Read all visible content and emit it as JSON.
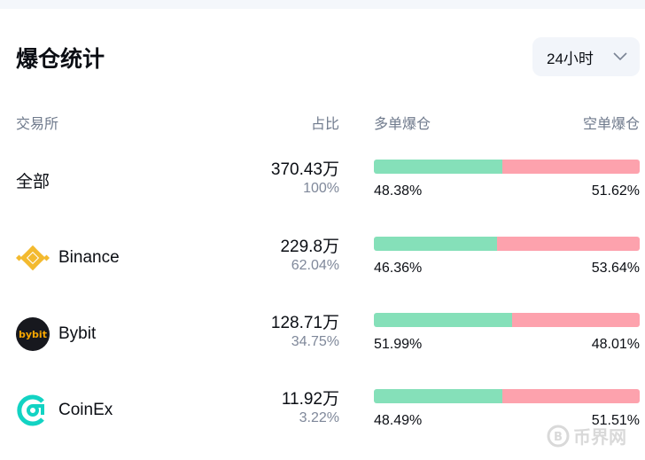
{
  "title": "爆仓统计",
  "period": {
    "selected": "24小时"
  },
  "headers": {
    "exchange": "交易所",
    "share": "占比",
    "long": "多单爆仓",
    "short": "空单爆仓"
  },
  "colors": {
    "long": "#85e0b9",
    "short": "#fda2ad"
  },
  "rows": [
    {
      "name": "全部",
      "amount": "370.43万",
      "share": "100%",
      "long_pct": "48.38%",
      "short_pct": "51.62%",
      "long": 48.38,
      "icon": ""
    },
    {
      "name": "Binance",
      "amount": "229.8万",
      "share": "62.04%",
      "long_pct": "46.36%",
      "short_pct": "53.64%",
      "long": 46.36,
      "icon": "binance-logo"
    },
    {
      "name": "Bybit",
      "amount": "128.71万",
      "share": "34.75%",
      "long_pct": "51.99%",
      "short_pct": "48.01%",
      "long": 51.99,
      "icon": "bybit-logo",
      "logo_text": "bybit"
    },
    {
      "name": "CoinEx",
      "amount": "11.92万",
      "share": "3.22%",
      "long_pct": "48.49%",
      "short_pct": "51.51%",
      "long": 48.49,
      "icon": "coinex-logo"
    }
  ],
  "watermark": "币界网"
}
